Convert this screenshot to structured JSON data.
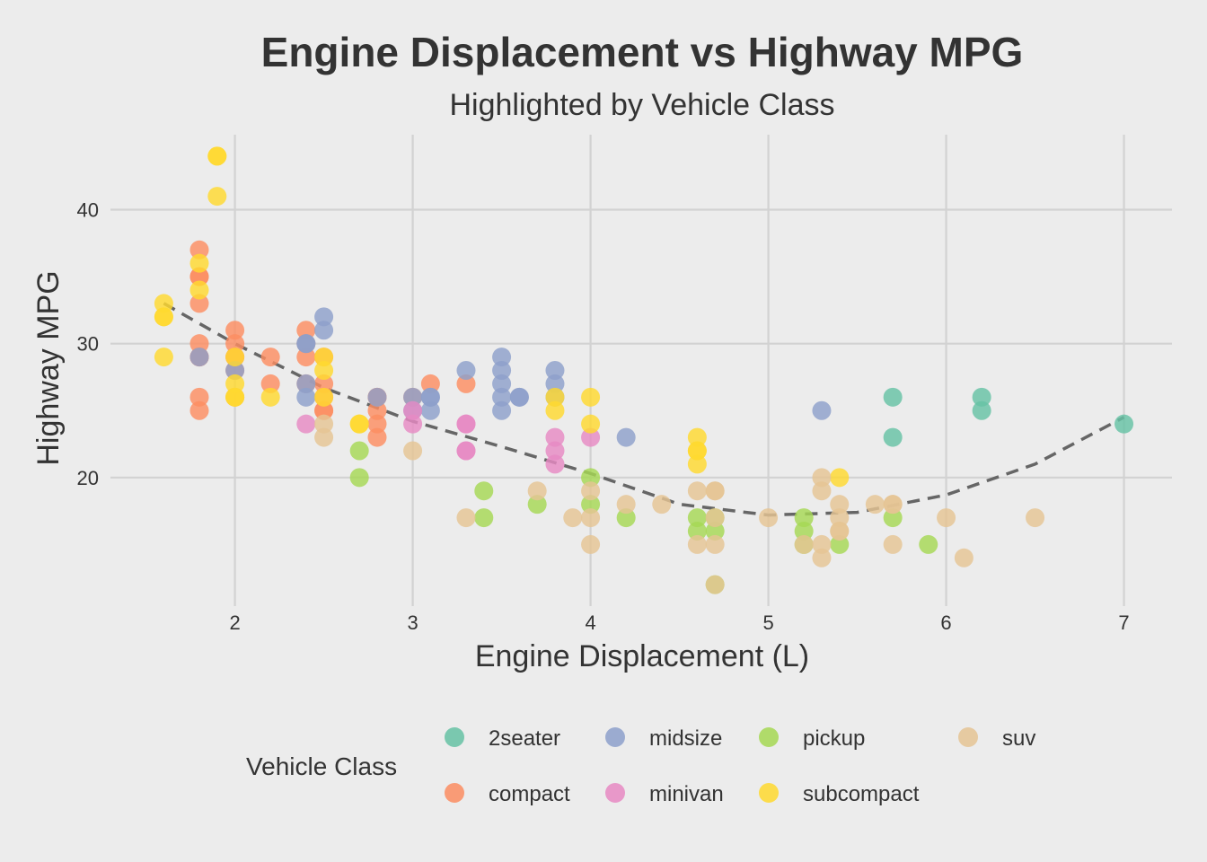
{
  "chart_data": {
    "type": "scatter",
    "title": "Engine Displacement vs Highway MPG",
    "subtitle": "Highlighted by Vehicle Class",
    "xlabel": "Engine Displacement (L)",
    "ylabel": "Highway MPG",
    "xlim": [
      1.3,
      7.27
    ],
    "ylim": [
      10.4,
      45.6
    ],
    "x_ticks": [
      2,
      3,
      4,
      5,
      6,
      7
    ],
    "y_ticks": [
      20,
      30,
      40
    ],
    "grid": true,
    "legend": {
      "title": "Vehicle Class",
      "position": "bottom",
      "entries": [
        "2seater",
        "compact",
        "midsize",
        "minivan",
        "pickup",
        "subcompact",
        "suv"
      ]
    },
    "series": [
      {
        "name": "2seater",
        "color": "#66c2a5",
        "points": [
          [
            5.7,
            26
          ],
          [
            5.7,
            23
          ],
          [
            6.2,
            26
          ],
          [
            6.2,
            25
          ],
          [
            7.0,
            24
          ]
        ]
      },
      {
        "name": "compact",
        "color": "#fc8d62",
        "points": [
          [
            1.8,
            29
          ],
          [
            1.8,
            29
          ],
          [
            2.0,
            31
          ],
          [
            2.0,
            30
          ],
          [
            2.8,
            26
          ],
          [
            2.8,
            26
          ],
          [
            3.1,
            27
          ],
          [
            1.8,
            26
          ],
          [
            1.8,
            25
          ],
          [
            2.0,
            28
          ],
          [
            2.0,
            29
          ],
          [
            2.8,
            24
          ],
          [
            2.8,
            25
          ],
          [
            2.4,
            27
          ],
          [
            2.4,
            30
          ],
          [
            2.4,
            31
          ],
          [
            2.5,
            26
          ],
          [
            2.5,
            25
          ],
          [
            2.2,
            27
          ],
          [
            2.2,
            29
          ],
          [
            1.8,
            33
          ],
          [
            1.8,
            35
          ],
          [
            1.8,
            37
          ],
          [
            1.8,
            35
          ],
          [
            1.8,
            30
          ],
          [
            2.0,
            29
          ],
          [
            2.0,
            26
          ],
          [
            2.8,
            23
          ],
          [
            3.0,
            26
          ],
          [
            3.3,
            27
          ],
          [
            2.5,
            29
          ],
          [
            2.5,
            27
          ],
          [
            2.5,
            25
          ],
          [
            2.4,
            29
          ]
        ]
      },
      {
        "name": "midsize",
        "color": "#8da0cb",
        "points": [
          [
            2.4,
            30
          ],
          [
            2.4,
            26
          ],
          [
            3.1,
            26
          ],
          [
            3.5,
            29
          ],
          [
            3.6,
            26
          ],
          [
            1.8,
            29
          ],
          [
            2.0,
            28
          ],
          [
            2.8,
            26
          ],
          [
            3.1,
            25
          ],
          [
            3.1,
            26
          ],
          [
            2.4,
            27
          ],
          [
            3.3,
            28
          ],
          [
            3.5,
            28
          ],
          [
            3.5,
            27
          ],
          [
            3.5,
            26
          ],
          [
            3.5,
            25
          ],
          [
            3.8,
            28
          ],
          [
            3.8,
            27
          ],
          [
            3.8,
            26
          ],
          [
            3.0,
            25
          ],
          [
            3.0,
            26
          ],
          [
            2.5,
            31
          ],
          [
            2.5,
            32
          ],
          [
            4.2,
            23
          ],
          [
            5.3,
            25
          ],
          [
            3.6,
            26
          ],
          [
            2.4,
            30
          ]
        ]
      },
      {
        "name": "minivan",
        "color": "#e78ac3",
        "points": [
          [
            2.4,
            24
          ],
          [
            3.0,
            24
          ],
          [
            3.3,
            22
          ],
          [
            3.3,
            22
          ],
          [
            3.3,
            24
          ],
          [
            3.3,
            24
          ],
          [
            3.8,
            22
          ],
          [
            3.8,
            21
          ],
          [
            3.8,
            23
          ],
          [
            4.0,
            23
          ],
          [
            3.0,
            25
          ]
        ]
      },
      {
        "name": "pickup",
        "color": "#a6d854",
        "points": [
          [
            2.7,
            20
          ],
          [
            2.7,
            22
          ],
          [
            3.4,
            17
          ],
          [
            3.4,
            19
          ],
          [
            4.0,
            18
          ],
          [
            4.0,
            20
          ],
          [
            3.7,
            18
          ],
          [
            4.7,
            12
          ],
          [
            4.7,
            16
          ],
          [
            4.7,
            17
          ],
          [
            5.2,
            17
          ],
          [
            5.2,
            15
          ],
          [
            5.2,
            16
          ],
          [
            5.7,
            17
          ],
          [
            5.9,
            15
          ],
          [
            4.6,
            17
          ],
          [
            4.6,
            16
          ],
          [
            5.4,
            15
          ],
          [
            4.2,
            17
          ]
        ]
      },
      {
        "name": "subcompact",
        "color": "#ffd92f",
        "points": [
          [
            1.6,
            33
          ],
          [
            1.6,
            32
          ],
          [
            1.6,
            32
          ],
          [
            1.6,
            29
          ],
          [
            1.8,
            34
          ],
          [
            1.8,
            36
          ],
          [
            1.9,
            44
          ],
          [
            1.9,
            44
          ],
          [
            1.9,
            41
          ],
          [
            2.0,
            29
          ],
          [
            2.0,
            26
          ],
          [
            2.0,
            27
          ],
          [
            2.0,
            26
          ],
          [
            2.2,
            26
          ],
          [
            2.5,
            26
          ],
          [
            2.5,
            28
          ],
          [
            2.5,
            29
          ],
          [
            2.7,
            24
          ],
          [
            2.7,
            24
          ],
          [
            3.8,
            25
          ],
          [
            3.8,
            26
          ],
          [
            4.0,
            24
          ],
          [
            4.0,
            26
          ],
          [
            4.6,
            23
          ],
          [
            4.6,
            22
          ],
          [
            4.6,
            21
          ],
          [
            4.6,
            22
          ],
          [
            5.4,
            20
          ]
        ]
      },
      {
        "name": "suv",
        "color": "#e5c494",
        "points": [
          [
            5.7,
            18
          ],
          [
            5.3,
            20
          ],
          [
            5.3,
            19
          ],
          [
            6.5,
            17
          ],
          [
            4.7,
            17
          ],
          [
            4.7,
            15
          ],
          [
            4.7,
            19
          ],
          [
            3.7,
            19
          ],
          [
            3.9,
            17
          ],
          [
            4.7,
            19
          ],
          [
            4.7,
            12
          ],
          [
            5.2,
            15
          ],
          [
            5.7,
            15
          ],
          [
            4.0,
            17
          ],
          [
            4.0,
            15
          ],
          [
            4.0,
            19
          ],
          [
            4.6,
            19
          ],
          [
            5.0,
            17
          ],
          [
            5.4,
            17
          ],
          [
            5.4,
            18
          ],
          [
            5.4,
            16
          ],
          [
            4.2,
            18
          ],
          [
            4.4,
            18
          ],
          [
            4.6,
            15
          ],
          [
            5.3,
            15
          ],
          [
            6.1,
            14
          ],
          [
            5.3,
            14
          ],
          [
            5.4,
            16
          ],
          [
            5.6,
            18
          ],
          [
            6.0,
            17
          ],
          [
            3.0,
            22
          ],
          [
            2.5,
            24
          ],
          [
            2.5,
            23
          ],
          [
            3.3,
            17
          ],
          [
            5.7,
            18
          ]
        ]
      }
    ],
    "trend": {
      "style": "dashed",
      "color": "#666666",
      "x": [
        1.6,
        2.0,
        2.5,
        3.0,
        3.5,
        4.0,
        4.5,
        5.0,
        5.5,
        6.0,
        6.5,
        7.0
      ],
      "y": [
        33,
        30,
        26.7,
        24.2,
        22.3,
        20.3,
        18.0,
        17.2,
        17.4,
        18.7,
        21.0,
        24.5
      ]
    }
  }
}
